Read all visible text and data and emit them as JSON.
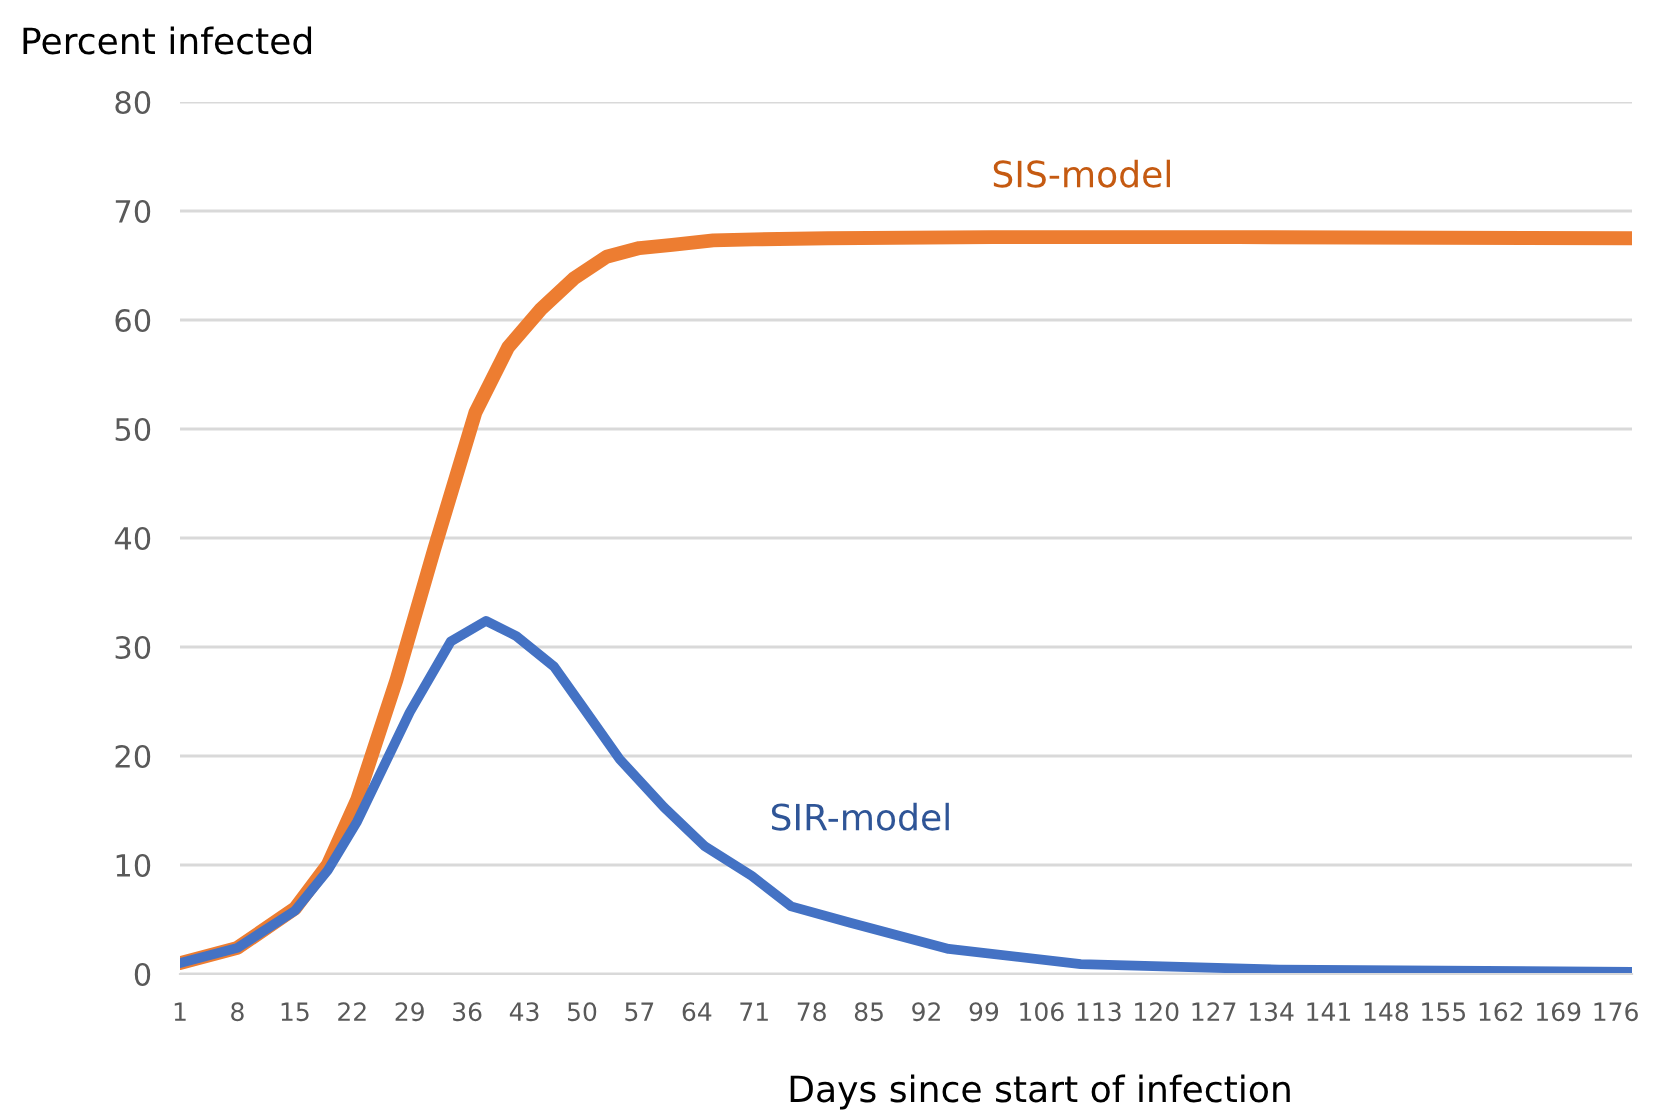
{
  "chart_data": {
    "type": "line",
    "ylabel": "Percent infected",
    "xlabel": "Days since start of infection",
    "xlim": [
      1,
      178
    ],
    "xticks": [
      1,
      8,
      15,
      22,
      29,
      36,
      43,
      50,
      57,
      64,
      71,
      78,
      85,
      92,
      99,
      106,
      113,
      120,
      127,
      134,
      141,
      148,
      155,
      162,
      169,
      176
    ],
    "ylim": [
      0,
      80
    ],
    "yticks": [
      0,
      10,
      20,
      30,
      40,
      50,
      60,
      70,
      80
    ],
    "grid": "y",
    "legend": false,
    "marker": "none",
    "line_style": "solid",
    "series": [
      {
        "name": "SIS-model",
        "color": "#ed7d31",
        "x": [
          1,
          8,
          15,
          19,
          22.6,
          27.4,
          32,
          37,
          41,
          45,
          49,
          53,
          57,
          61,
          66,
          71,
          80,
          100,
          130,
          178
        ],
        "values": [
          1,
          2.4,
          6,
          10,
          16,
          27,
          39,
          51.5,
          57.5,
          61,
          63.8,
          65.8,
          66.6,
          66.9,
          67.3,
          67.4,
          67.5,
          67.6,
          67.6,
          67.5
        ]
      },
      {
        "name": "SIR-model",
        "color": "#4472c4",
        "x": [
          1,
          8,
          15,
          19,
          22.6,
          29,
          34,
          38.3,
          42,
          46.6,
          50,
          54.6,
          60,
          65,
          70.7,
          75.5,
          82.7,
          94.7,
          110.8,
          135,
          178
        ],
        "values": [
          1,
          2.4,
          5.8,
          9.5,
          14,
          24,
          30.5,
          32.4,
          31,
          28.2,
          24.6,
          19.7,
          15.3,
          11.7,
          9,
          6.2,
          4.7,
          2.3,
          0.9,
          0.4,
          0.2
        ]
      }
    ]
  }
}
